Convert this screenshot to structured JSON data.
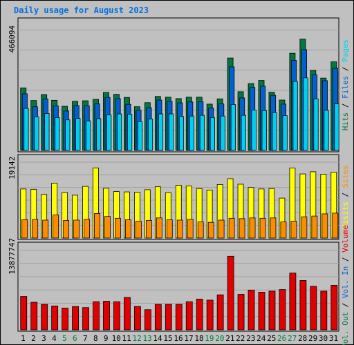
{
  "title": "Daily usage for August 2023",
  "colors": {
    "background": "#ffffff",
    "frame_outer": "#c0c0c0",
    "panel": "#c0c0c0",
    "grid": "#a0a0a0",
    "title": "#0070e0",
    "hits": "#007a3c",
    "files": "#0060d0",
    "pages": "#00d0f0",
    "visits": "#ffff00",
    "sites": "#ff8c00",
    "volume": "#e00000",
    "weekday_label": "#000000",
    "weekend_label": "#008040",
    "label_sep": "#000000"
  },
  "chart_data": [
    {
      "type": "bar",
      "panel": "top",
      "max_label": "466094",
      "ylim": [
        0,
        466094
      ],
      "categories": [
        "1",
        "2",
        "3",
        "4",
        "5",
        "6",
        "7",
        "8",
        "9",
        "10",
        "11",
        "12",
        "13",
        "14",
        "15",
        "16",
        "17",
        "18",
        "19",
        "20",
        "21",
        "22",
        "23",
        "24",
        "25",
        "26",
        "27",
        "28",
        "29",
        "30",
        "31"
      ],
      "series": [
        {
          "name": "Hits",
          "color_key": "hits",
          "values": [
            262000,
            209000,
            234000,
            210000,
            185000,
            206000,
            208000,
            214000,
            243000,
            235000,
            222000,
            183000,
            200000,
            226000,
            223000,
            217000,
            223000,
            223000,
            194000,
            216000,
            387000,
            246000,
            280000,
            293000,
            244000,
            211000,
            407000,
            466094,
            335000,
            303000,
            371000
          ]
        },
        {
          "name": "Files",
          "color_key": "files",
          "values": [
            237000,
            183000,
            216000,
            187000,
            165000,
            188000,
            187000,
            195000,
            222000,
            217000,
            193000,
            168000,
            179000,
            211000,
            206000,
            199000,
            203000,
            204000,
            178000,
            195000,
            350000,
            220000,
            264000,
            269000,
            231000,
            194000,
            377000,
            422000,
            317000,
            292000,
            344000
          ]
        },
        {
          "name": "Pages",
          "color_key": "pages",
          "values": [
            176000,
            141000,
            155000,
            137000,
            128000,
            134000,
            124000,
            133000,
            149000,
            153000,
            152000,
            121000,
            132000,
            153000,
            153000,
            142000,
            144000,
            147000,
            137000,
            144000,
            192000,
            147000,
            169000,
            167000,
            158000,
            146000,
            289000,
            304000,
            216000,
            168000,
            195000
          ]
        }
      ]
    },
    {
      "type": "bar",
      "panel": "middle",
      "max_label": "19142",
      "ylim": [
        0,
        19142
      ],
      "categories": [
        "1",
        "2",
        "3",
        "4",
        "5",
        "6",
        "7",
        "8",
        "9",
        "10",
        "11",
        "12",
        "13",
        "14",
        "15",
        "16",
        "17",
        "18",
        "19",
        "20",
        "21",
        "22",
        "23",
        "24",
        "25",
        "26",
        "27",
        "28",
        "29",
        "30",
        "31"
      ],
      "series": [
        {
          "name": "Visits",
          "color_key": "visits",
          "values": [
            13400,
            13300,
            11900,
            15000,
            12400,
            11700,
            14100,
            19142,
            13600,
            12700,
            12600,
            12500,
            13200,
            14000,
            12400,
            14400,
            14200,
            13500,
            13100,
            14600,
            16200,
            14700,
            13800,
            13400,
            13500,
            10900,
            19100,
            17500,
            18100,
            17400,
            18000
          ]
        },
        {
          "name": "Sites",
          "color_key": "sites",
          "values": [
            5000,
            5100,
            4900,
            6300,
            4800,
            4900,
            5100,
            6700,
            5900,
            5400,
            5000,
            4600,
            4800,
            5500,
            5000,
            4900,
            5100,
            4400,
            4300,
            4900,
            5400,
            5300,
            5500,
            5400,
            5500,
            4400,
            4600,
            5800,
            6000,
            6600,
            6800
          ]
        }
      ]
    },
    {
      "type": "bar",
      "panel": "bottom",
      "max_label": "13877747",
      "ylim": [
        0,
        13877747
      ],
      "categories": [
        "1",
        "2",
        "3",
        "4",
        "5",
        "6",
        "7",
        "8",
        "9",
        "10",
        "11",
        "12",
        "13",
        "14",
        "15",
        "16",
        "17",
        "18",
        "19",
        "20",
        "21",
        "22",
        "23",
        "24",
        "25",
        "26",
        "27",
        "28",
        "29",
        "30",
        "31"
      ],
      "series": [
        {
          "name": "Volume",
          "color_key": "volume",
          "values": [
            6300000,
            5200000,
            4800000,
            4500000,
            4100000,
            4400000,
            4200000,
            5300000,
            5400000,
            5300000,
            6100000,
            4400000,
            3800000,
            4800000,
            4800000,
            4800000,
            5300000,
            5800000,
            5600000,
            6600000,
            13877747,
            6700000,
            7500000,
            7100000,
            7300000,
            7600000,
            10700000,
            9300000,
            8200000,
            7300000,
            8400000
          ]
        }
      ]
    }
  ],
  "right_labels": {
    "top": [
      {
        "text": "Hits",
        "color_key": "hits"
      },
      {
        "text": "Files",
        "color_key": "files"
      },
      {
        "text": "Pages",
        "color_key": "pages"
      }
    ],
    "middle": [
      {
        "text": "Visits",
        "color_key": "visits"
      },
      {
        "text": "Sites",
        "color_key": "sites"
      }
    ],
    "bottom": [
      {
        "text": "Vol. Out",
        "color_key": "hits"
      },
      {
        "text": "Vol. In",
        "color_key": "files"
      },
      {
        "text": "Volume",
        "color_key": "volume"
      }
    ]
  },
  "weekend_days": [
    "5",
    "6",
    "12",
    "13",
    "19",
    "20",
    "26",
    "27"
  ]
}
